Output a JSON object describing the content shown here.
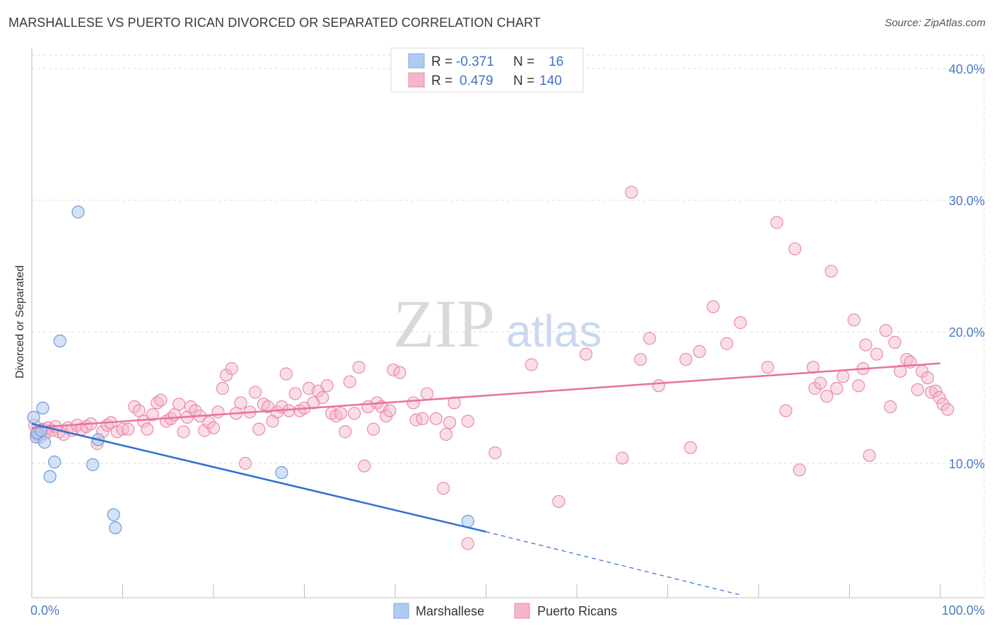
{
  "header": {
    "title": "MARSHALLESE VS PUERTO RICAN DIVORCED OR SEPARATED CORRELATION CHART",
    "source": "Source: ZipAtlas.com"
  },
  "watermark": {
    "zip": "ZIP",
    "atlas": "atlas"
  },
  "colors": {
    "blue": "#4a7bc8",
    "blue_fill": "#aecbf1",
    "blue_line": "#2f6fcf",
    "pink_fill": "#f5b6c9",
    "pink_stroke": "#ea8aa8",
    "pink_line": "#e8729a"
  },
  "legend": {
    "rows": [
      {
        "r_label": "R =",
        "r_value": "-0.371",
        "n_label": "N =",
        "n_value": "16"
      },
      {
        "r_label": "R =",
        "r_value": "0.479",
        "n_label": "N =",
        "n_value": "140"
      }
    ]
  },
  "bottom_legend": [
    "Marshallese",
    "Puerto Ricans"
  ],
  "chart_data": {
    "type": "scatter",
    "title": "MARSHALLESE VS PUERTO RICAN DIVORCED OR SEPARATED CORRELATION CHART",
    "xlabel": "",
    "ylabel": "Divorced or Separated",
    "xlim": [
      0,
      100
    ],
    "ylim": [
      0,
      42
    ],
    "x_tick_labels": [
      "0.0%",
      "100.0%"
    ],
    "y_ticks": [
      10,
      20,
      30,
      40
    ],
    "y_tick_labels": [
      "10.0%",
      "20.0%",
      "30.0%",
      "40.0%"
    ],
    "grid": true,
    "legend_position": "top-center",
    "series": [
      {
        "name": "Marshallese",
        "color": "#aecbf1",
        "R": -0.371,
        "N": 16,
        "trend": {
          "x": [
            0,
            50
          ],
          "y": [
            13.0,
            4.8
          ],
          "dashed_to": [
            78,
            0
          ]
        },
        "points": [
          [
            0.2,
            13.5
          ],
          [
            0.5,
            12.0
          ],
          [
            0.6,
            12.3
          ],
          [
            1.0,
            12.5
          ],
          [
            1.2,
            14.2
          ],
          [
            1.4,
            11.6
          ],
          [
            2.0,
            9.0
          ],
          [
            2.5,
            10.1
          ],
          [
            3.1,
            19.3
          ],
          [
            5.1,
            29.1
          ],
          [
            6.7,
            9.9
          ],
          [
            7.3,
            11.8
          ],
          [
            9.0,
            6.1
          ],
          [
            9.2,
            5.1
          ],
          [
            27.5,
            9.3
          ],
          [
            48.0,
            5.6
          ]
        ]
      },
      {
        "name": "Puerto Ricans",
        "color": "#f5b6c9",
        "R": 0.479,
        "N": 140,
        "trend": {
          "x": [
            0,
            100
          ],
          "y": [
            12.7,
            17.6
          ]
        },
        "points": [
          [
            0.3,
            12.9
          ],
          [
            0.5,
            12.2
          ],
          [
            0.7,
            12.4
          ],
          [
            0.9,
            12.0
          ],
          [
            1.2,
            12.6
          ],
          [
            1.5,
            12.3
          ],
          [
            1.8,
            12.7
          ],
          [
            2.2,
            12.5
          ],
          [
            2.6,
            12.8
          ],
          [
            3.0,
            12.4
          ],
          [
            3.5,
            12.2
          ],
          [
            4.0,
            12.7
          ],
          [
            4.4,
            12.5
          ],
          [
            5.0,
            12.9
          ],
          [
            5.5,
            12.6
          ],
          [
            6.0,
            12.8
          ],
          [
            6.5,
            13.0
          ],
          [
            7.2,
            11.5
          ],
          [
            7.8,
            12.4
          ],
          [
            8.3,
            12.9
          ],
          [
            8.7,
            13.1
          ],
          [
            9.4,
            12.4
          ],
          [
            10.0,
            12.6
          ],
          [
            10.6,
            12.6
          ],
          [
            11.3,
            14.3
          ],
          [
            11.8,
            14.0
          ],
          [
            12.3,
            13.2
          ],
          [
            12.7,
            12.6
          ],
          [
            13.3,
            13.7
          ],
          [
            13.8,
            14.6
          ],
          [
            14.2,
            14.8
          ],
          [
            14.8,
            13.2
          ],
          [
            15.3,
            13.4
          ],
          [
            15.7,
            13.7
          ],
          [
            16.2,
            14.5
          ],
          [
            16.7,
            12.4
          ],
          [
            17.1,
            13.5
          ],
          [
            17.5,
            14.3
          ],
          [
            18.0,
            14.0
          ],
          [
            18.5,
            13.6
          ],
          [
            19.0,
            12.5
          ],
          [
            19.5,
            13.1
          ],
          [
            20.0,
            12.7
          ],
          [
            20.5,
            13.9
          ],
          [
            21.0,
            15.7
          ],
          [
            21.4,
            16.7
          ],
          [
            22.0,
            17.2
          ],
          [
            22.5,
            13.8
          ],
          [
            23.0,
            14.6
          ],
          [
            23.5,
            10.0
          ],
          [
            24.0,
            13.9
          ],
          [
            24.6,
            15.4
          ],
          [
            25.0,
            12.6
          ],
          [
            25.5,
            14.5
          ],
          [
            26.0,
            14.3
          ],
          [
            26.5,
            13.2
          ],
          [
            27.0,
            13.9
          ],
          [
            27.5,
            14.3
          ],
          [
            28.0,
            16.8
          ],
          [
            28.3,
            14.0
          ],
          [
            29.0,
            15.3
          ],
          [
            29.5,
            14.0
          ],
          [
            30.0,
            14.2
          ],
          [
            30.5,
            15.7
          ],
          [
            31.0,
            14.6
          ],
          [
            31.5,
            15.5
          ],
          [
            32.0,
            15.0
          ],
          [
            32.5,
            15.9
          ],
          [
            33.0,
            13.8
          ],
          [
            33.5,
            13.6
          ],
          [
            34.0,
            13.8
          ],
          [
            34.5,
            12.4
          ],
          [
            35.0,
            16.2
          ],
          [
            35.5,
            13.8
          ],
          [
            36.0,
            17.3
          ],
          [
            36.6,
            9.8
          ],
          [
            37.0,
            14.3
          ],
          [
            37.6,
            12.6
          ],
          [
            38.0,
            14.6
          ],
          [
            38.5,
            14.3
          ],
          [
            39.0,
            13.6
          ],
          [
            39.4,
            14.0
          ],
          [
            39.8,
            17.1
          ],
          [
            40.5,
            16.9
          ],
          [
            42.0,
            14.6
          ],
          [
            42.3,
            13.3
          ],
          [
            43.0,
            13.4
          ],
          [
            43.5,
            15.3
          ],
          [
            44.5,
            13.4
          ],
          [
            45.3,
            8.1
          ],
          [
            45.6,
            12.2
          ],
          [
            46.0,
            13.1
          ],
          [
            46.5,
            14.6
          ],
          [
            48.0,
            13.2
          ],
          [
            48.0,
            3.9
          ],
          [
            51.0,
            10.8
          ],
          [
            55.0,
            17.5
          ],
          [
            58.0,
            7.1
          ],
          [
            61.0,
            18.3
          ],
          [
            65.0,
            10.4
          ],
          [
            66.0,
            30.6
          ],
          [
            67.0,
            17.9
          ],
          [
            68.0,
            19.5
          ],
          [
            69.0,
            15.9
          ],
          [
            72.0,
            17.9
          ],
          [
            72.5,
            11.2
          ],
          [
            73.5,
            18.5
          ],
          [
            75.0,
            21.9
          ],
          [
            76.5,
            19.1
          ],
          [
            78.0,
            20.7
          ],
          [
            81.0,
            17.3
          ],
          [
            82.0,
            28.3
          ],
          [
            83.0,
            14.0
          ],
          [
            84.0,
            26.3
          ],
          [
            84.5,
            9.5
          ],
          [
            86.0,
            17.3
          ],
          [
            86.2,
            15.7
          ],
          [
            86.8,
            16.1
          ],
          [
            87.5,
            15.1
          ],
          [
            88.0,
            24.6
          ],
          [
            88.6,
            15.7
          ],
          [
            89.3,
            16.6
          ],
          [
            90.5,
            20.9
          ],
          [
            91.0,
            15.9
          ],
          [
            91.5,
            17.2
          ],
          [
            91.8,
            19.0
          ],
          [
            92.2,
            10.6
          ],
          [
            93.0,
            18.3
          ],
          [
            94.0,
            20.1
          ],
          [
            94.5,
            14.3
          ],
          [
            95.0,
            19.2
          ],
          [
            95.6,
            17.0
          ],
          [
            96.3,
            17.9
          ],
          [
            96.7,
            17.7
          ],
          [
            97.5,
            15.6
          ],
          [
            98.0,
            17.0
          ],
          [
            98.6,
            16.5
          ],
          [
            99.0,
            15.4
          ],
          [
            99.5,
            15.5
          ],
          [
            99.9,
            15.0
          ],
          [
            100.3,
            14.5
          ],
          [
            100.8,
            14.1
          ]
        ]
      }
    ]
  }
}
